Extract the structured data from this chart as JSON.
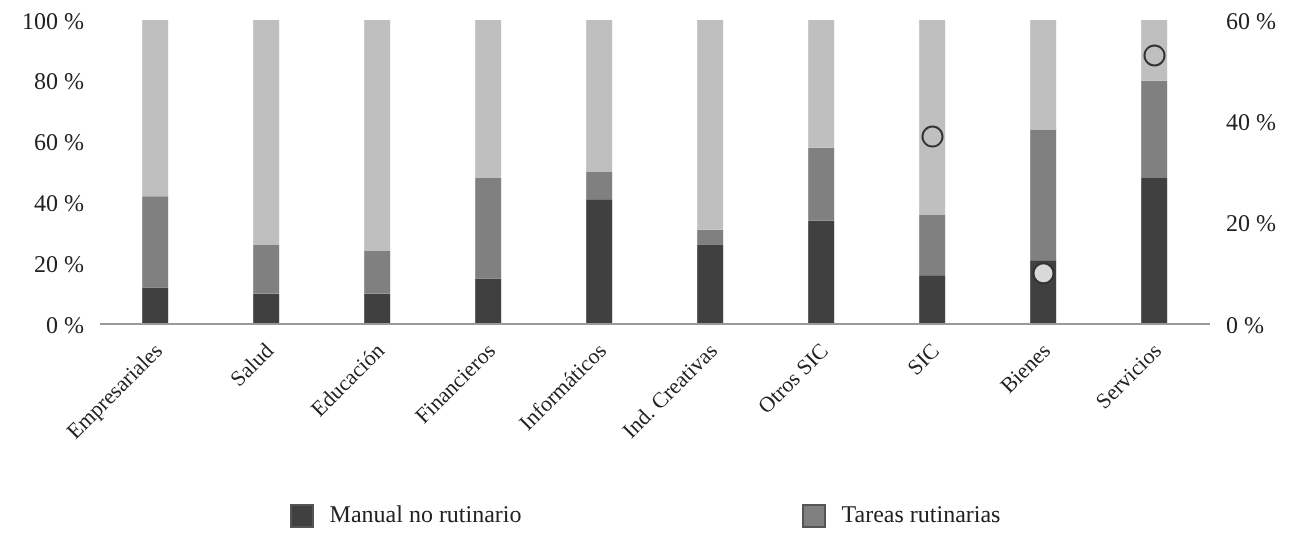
{
  "chart_data": {
    "type": "bar",
    "stacked": true,
    "categories": [
      "Empresariales",
      "Salud",
      "Educación",
      "Financieros",
      "Informáticos",
      "Ind. Creativas",
      "Otros SIC",
      "SIC",
      "Bienes",
      "Servicios"
    ],
    "series": [
      {
        "name": "Manual no rutinario",
        "color": "#404040",
        "values": [
          12,
          10,
          10,
          15,
          41,
          26,
          34,
          16,
          21,
          48
        ]
      },
      {
        "name": "Tareas rutinarias",
        "color": "#808080",
        "values": [
          30,
          16,
          14,
          33,
          9,
          5,
          24,
          20,
          43,
          32
        ]
      },
      {
        "color": "#bfbfbf",
        "values": [
          58,
          74,
          76,
          52,
          50,
          69,
          42,
          64,
          36,
          20
        ]
      },
      {
        "type": "scatter",
        "axis": "y2",
        "marker": "circle",
        "color": "#bfbfbf",
        "values": [
          null,
          null,
          null,
          null,
          null,
          null,
          null,
          37,
          null,
          53
        ]
      },
      {
        "type": "scatter",
        "axis": "y2",
        "marker": "circle",
        "color": "#d9d9d9",
        "values": [
          null,
          null,
          null,
          null,
          null,
          null,
          null,
          null,
          10,
          null
        ]
      }
    ],
    "ylim": [
      0,
      100
    ],
    "yticks": [
      {
        "value": 0,
        "label": "0 %"
      },
      {
        "value": 20,
        "label": "20 %"
      },
      {
        "value": 40,
        "label": "40 %"
      },
      {
        "value": 60,
        "label": "60 %"
      },
      {
        "value": 80,
        "label": "80 %"
      },
      {
        "value": 100,
        "label": "100 %"
      }
    ],
    "y2lim": [
      0,
      60
    ],
    "y2ticks": [
      {
        "value": 0,
        "label": "0 %"
      },
      {
        "value": 20,
        "label": "20 %"
      },
      {
        "value": 40,
        "label": "40 %"
      },
      {
        "value": 60,
        "label": "60 %"
      }
    ],
    "legend": "bottom",
    "grid": false
  }
}
